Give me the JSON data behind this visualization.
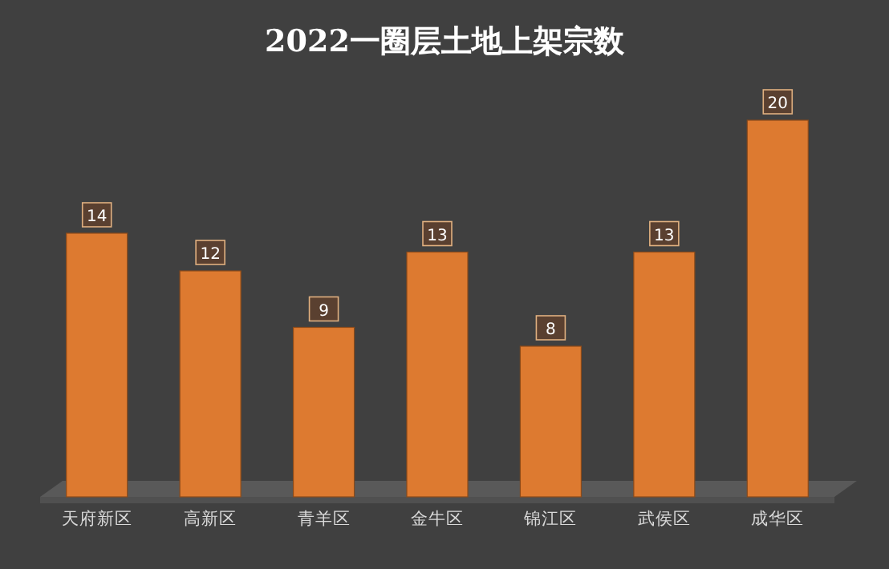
{
  "chart_data": {
    "type": "bar",
    "title": "2022一圈层土地上架宗数",
    "categories": [
      "天府新区",
      "高新区",
      "青羊区",
      "金牛区",
      "锦江区",
      "武侯区",
      "成华区"
    ],
    "values": [
      14,
      12,
      9,
      13,
      8,
      13,
      20
    ],
    "color": "#dd7a30",
    "data_labels": true
  }
}
